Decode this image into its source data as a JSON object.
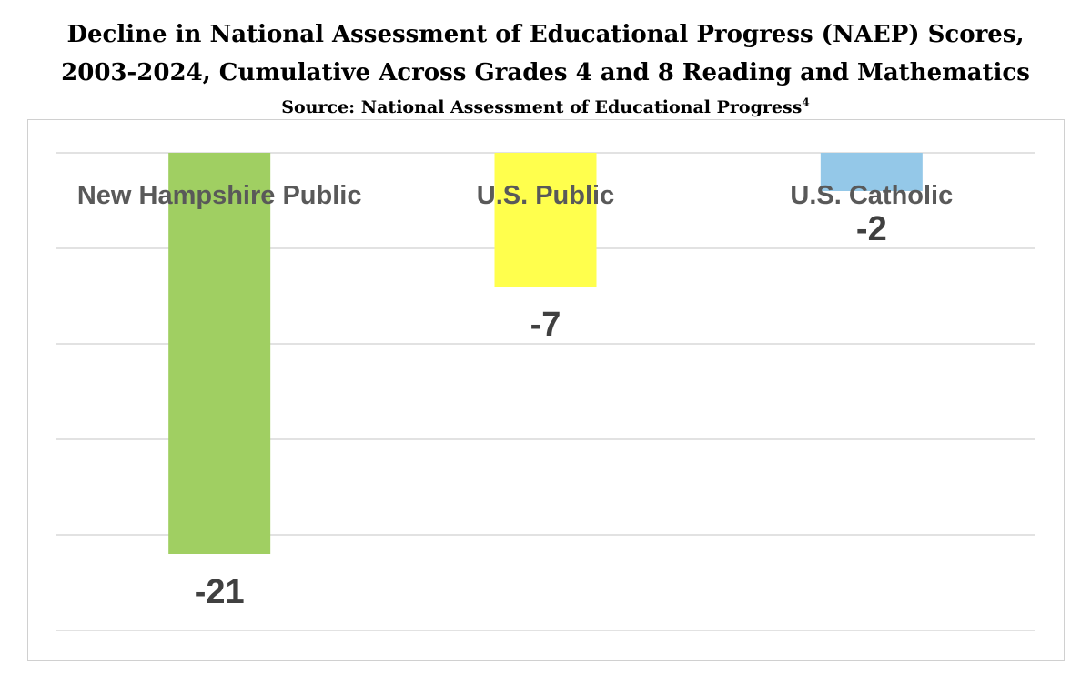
{
  "chart_data": {
    "type": "bar",
    "title": "Decline in National Assessment of Educational Progress (NAEP) Scores, 2003-2024, Cumulative Across Grades 4 and 8 Reading and Mathematics",
    "title_lines": [
      "Decline in National Assessment of Educational Progress (NAEP) Scores,",
      "2003-2024, Cumulative Across Grades 4 and 8 Reading and Mathematics"
    ],
    "subtitle": "Source: National Assessment of Educational Progress",
    "subtitle_footnote": "4",
    "categories": [
      "New Hampshire Public",
      "U.S. Public",
      "U.S. Catholic"
    ],
    "values": [
      -21,
      -7,
      -2
    ],
    "data_labels": [
      "-21",
      "-7",
      "-2"
    ],
    "colors": [
      "#a0cf62",
      "#ffff4d",
      "#94c8e8"
    ],
    "ylim": [
      -25,
      0
    ],
    "grid": true,
    "legend": "none",
    "xlabel": "",
    "ylabel": ""
  }
}
